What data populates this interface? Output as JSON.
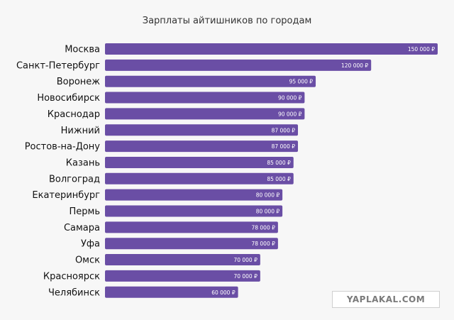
{
  "chart_data": {
    "type": "bar",
    "orientation": "horizontal",
    "title": "Зарплаты айтишников по городам",
    "categories": [
      "Москва",
      "Санкт-Петербург",
      "Воронеж",
      "Новосибирск",
      "Краснодар",
      "Нижний",
      "Ростов-на-Дону",
      "Казань",
      "Волгоград",
      "Екатеринбург",
      "Пермь",
      "Самара",
      "Уфа",
      "Омск",
      "Красноярск",
      "Челябинск"
    ],
    "values": [
      150000,
      120000,
      95000,
      90000,
      90000,
      87000,
      87000,
      85000,
      85000,
      80000,
      80000,
      78000,
      78000,
      70000,
      70000,
      60000
    ],
    "value_labels": [
      "150 000 ₽",
      "120 000 ₽",
      "95 000 ₽",
      "90 000 ₽",
      "90 000 ₽",
      "87 000 ₽",
      "87 000 ₽",
      "85 000 ₽",
      "85 000 ₽",
      "80 000 ₽",
      "80 000 ₽",
      "78 000 ₽",
      "78 000 ₽",
      "70 000 ₽",
      "70 000 ₽",
      "60 000 ₽"
    ],
    "xlim": [
      0,
      150000
    ],
    "grid": false,
    "bar_color": "#6a4ea5"
  },
  "watermark": "YAPLAKAL.COM"
}
